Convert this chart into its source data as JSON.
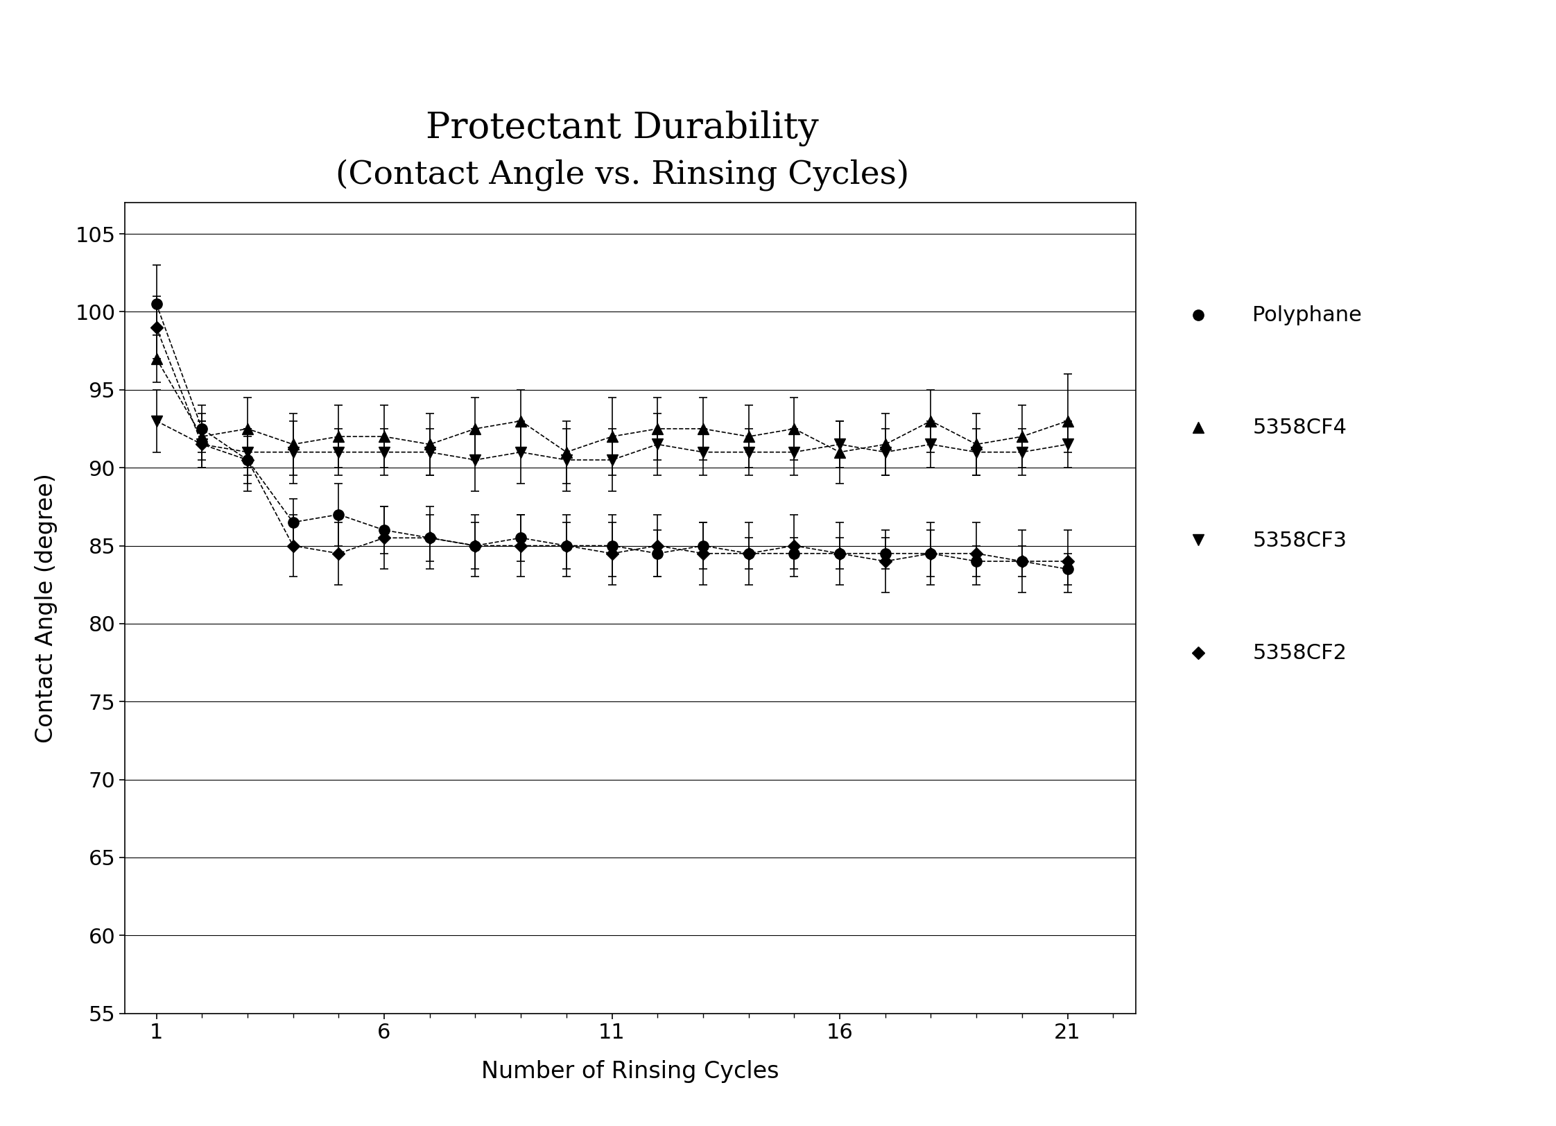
{
  "title_line1": "Protectant Durability",
  "title_line2": "(Contact Angle vs. Rinsing Cycles)",
  "xlabel": "Number of Rinsing Cycles",
  "ylabel": "Contact Angle (degree)",
  "ylim": [
    55,
    107
  ],
  "yticks": [
    55,
    60,
    65,
    70,
    75,
    80,
    85,
    90,
    95,
    100,
    105
  ],
  "xticks": [
    1,
    6,
    11,
    16,
    21
  ],
  "background_color": "#ffffff",
  "polyphane": {
    "x": [
      1,
      2,
      3,
      4,
      5,
      6,
      7,
      8,
      9,
      10,
      11,
      12,
      13,
      14,
      15,
      16,
      17,
      18,
      19,
      20,
      21
    ],
    "y": [
      100.5,
      92.5,
      90.5,
      86.5,
      87.0,
      86.0,
      85.5,
      85.0,
      85.5,
      85.0,
      85.0,
      84.5,
      85.0,
      84.5,
      84.5,
      84.5,
      84.5,
      84.5,
      84.0,
      84.0,
      83.5
    ],
    "yerr_lo": [
      1.5,
      1.5,
      1.5,
      1.5,
      2.0,
      1.5,
      1.5,
      1.5,
      1.5,
      1.5,
      2.0,
      1.5,
      1.5,
      1.0,
      1.0,
      1.0,
      1.0,
      1.5,
      1.0,
      1.0,
      1.0
    ],
    "yerr_hi": [
      2.5,
      1.5,
      1.5,
      1.5,
      2.0,
      1.5,
      1.5,
      1.5,
      1.5,
      1.5,
      2.0,
      1.5,
      1.5,
      1.0,
      1.0,
      1.0,
      1.0,
      1.5,
      1.0,
      1.0,
      1.0
    ],
    "marker": "o",
    "label": "Polyphane",
    "linestyle": "--"
  },
  "cf4": {
    "x": [
      1,
      2,
      3,
      4,
      5,
      6,
      7,
      8,
      9,
      10,
      11,
      12,
      13,
      14,
      15,
      16,
      17,
      18,
      19,
      20,
      21
    ],
    "y": [
      97.0,
      92.0,
      92.5,
      91.5,
      92.0,
      92.0,
      91.5,
      92.5,
      93.0,
      91.0,
      92.0,
      92.5,
      92.5,
      92.0,
      92.5,
      91.0,
      91.5,
      93.0,
      91.5,
      92.0,
      93.0
    ],
    "yerr_lo": [
      1.5,
      1.5,
      2.5,
      2.0,
      2.0,
      2.0,
      2.0,
      2.0,
      2.0,
      2.0,
      2.5,
      2.0,
      2.0,
      2.0,
      2.0,
      2.0,
      2.0,
      2.0,
      2.0,
      2.0,
      2.0
    ],
    "yerr_hi": [
      1.5,
      1.5,
      2.0,
      2.0,
      2.0,
      2.0,
      2.0,
      2.0,
      2.0,
      2.0,
      2.5,
      2.0,
      2.0,
      2.0,
      2.0,
      2.0,
      2.0,
      2.0,
      2.0,
      2.0,
      3.0
    ],
    "marker": "^",
    "label": "5358CF4",
    "linestyle": "--"
  },
  "cf3": {
    "x": [
      1,
      2,
      3,
      4,
      5,
      6,
      7,
      8,
      9,
      10,
      11,
      12,
      13,
      14,
      15,
      16,
      17,
      18,
      19,
      20,
      21
    ],
    "y": [
      93.0,
      91.5,
      91.0,
      91.0,
      91.0,
      91.0,
      91.0,
      90.5,
      91.0,
      90.5,
      90.5,
      91.5,
      91.0,
      91.0,
      91.0,
      91.5,
      91.0,
      91.5,
      91.0,
      91.0,
      91.5
    ],
    "yerr_lo": [
      2.0,
      1.5,
      1.5,
      2.0,
      1.5,
      1.5,
      1.5,
      2.0,
      2.0,
      2.0,
      2.0,
      2.0,
      1.5,
      1.5,
      1.5,
      1.5,
      1.5,
      1.5,
      1.5,
      1.5,
      1.5
    ],
    "yerr_hi": [
      2.0,
      1.5,
      1.5,
      2.0,
      1.5,
      1.5,
      1.5,
      2.0,
      2.0,
      2.0,
      2.0,
      2.0,
      1.5,
      1.5,
      1.5,
      1.5,
      1.5,
      1.5,
      1.5,
      1.5,
      1.5
    ],
    "marker": "v",
    "label": "5358CF3",
    "linestyle": "--"
  },
  "cf2": {
    "x": [
      1,
      2,
      3,
      4,
      5,
      6,
      7,
      8,
      9,
      10,
      11,
      12,
      13,
      14,
      15,
      16,
      17,
      18,
      19,
      20,
      21
    ],
    "y": [
      99.0,
      91.5,
      90.5,
      85.0,
      84.5,
      85.5,
      85.5,
      85.0,
      85.0,
      85.0,
      84.5,
      85.0,
      84.5,
      84.5,
      85.0,
      84.5,
      84.0,
      84.5,
      84.5,
      84.0,
      84.0
    ],
    "yerr_lo": [
      2.0,
      1.5,
      2.0,
      2.0,
      2.0,
      2.0,
      2.0,
      2.0,
      2.0,
      2.0,
      2.0,
      2.0,
      2.0,
      2.0,
      2.0,
      2.0,
      2.0,
      2.0,
      2.0,
      2.0,
      2.0
    ],
    "yerr_hi": [
      2.0,
      1.5,
      2.0,
      2.0,
      2.0,
      2.0,
      2.0,
      2.0,
      2.0,
      2.0,
      2.0,
      2.0,
      2.0,
      2.0,
      2.0,
      2.0,
      2.0,
      2.0,
      2.0,
      2.0,
      2.0
    ],
    "marker": "D",
    "label": "5358CF2",
    "linestyle": "--"
  }
}
